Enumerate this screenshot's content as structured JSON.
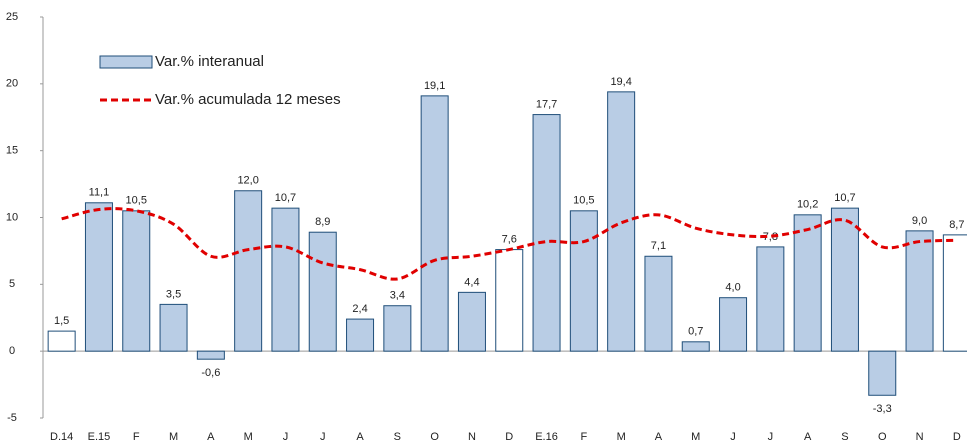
{
  "chart_data": {
    "type": "bar",
    "categories": [
      "D.14",
      "E.15",
      "F",
      "M",
      "A",
      "M",
      "J",
      "J",
      "A",
      "S",
      "O",
      "N",
      "D",
      "E.16",
      "F",
      "M",
      "A",
      "M",
      "J",
      "J",
      "A",
      "S",
      "O",
      "N",
      "D"
    ],
    "series": [
      {
        "name": "Var.% interanual",
        "type": "bar",
        "color": "#b9cde5",
        "edge": "#1f4e79",
        "colors": [
          "#ffffff",
          "#b9cde5",
          "#b9cde5",
          "#b9cde5",
          "#b9cde5",
          "#b9cde5",
          "#b9cde5",
          "#b9cde5",
          "#b9cde5",
          "#b9cde5",
          "#b9cde5",
          "#b9cde5",
          "#ffffff",
          "#b9cde5",
          "#b9cde5",
          "#b9cde5",
          "#b9cde5",
          "#b9cde5",
          "#b9cde5",
          "#b9cde5",
          "#b9cde5",
          "#b9cde5",
          "#b9cde5",
          "#b9cde5",
          "#ffffff"
        ],
        "values": [
          1.5,
          11.1,
          10.5,
          3.5,
          -0.6,
          12.0,
          10.7,
          8.9,
          2.4,
          3.4,
          19.1,
          4.4,
          7.6,
          17.7,
          10.5,
          19.4,
          7.1,
          0.7,
          4.0,
          7.8,
          10.2,
          10.7,
          -3.3,
          9.0,
          8.7
        ],
        "value_labels": [
          "1,5",
          "11,1",
          "10,5",
          "3,5",
          "-0,6",
          "12,0",
          "10,7",
          "8,9",
          "2,4",
          "3,4",
          "19,1",
          "4,4",
          "7,6",
          "17,7",
          "10,5",
          "19,4",
          "7,1",
          "0,7",
          "4,0",
          "7,8",
          "10,2",
          "10,7",
          "-3,3",
          "9,0",
          "8,7"
        ]
      },
      {
        "name": "Var.% acumulada 12 meses",
        "type": "line",
        "color": "#e00000",
        "dashed": true,
        "values": [
          9.9,
          10.6,
          10.5,
          9.5,
          7.1,
          7.6,
          7.8,
          6.6,
          6.1,
          5.4,
          6.8,
          7.1,
          7.6,
          8.2,
          8.2,
          9.6,
          10.2,
          9.2,
          8.7,
          8.6,
          9.1,
          9.8,
          7.8,
          8.2,
          8.3
        ]
      }
    ],
    "ylim": [
      -5,
      25
    ],
    "yticks": [
      -5,
      0,
      5,
      10,
      15,
      20,
      25
    ]
  }
}
